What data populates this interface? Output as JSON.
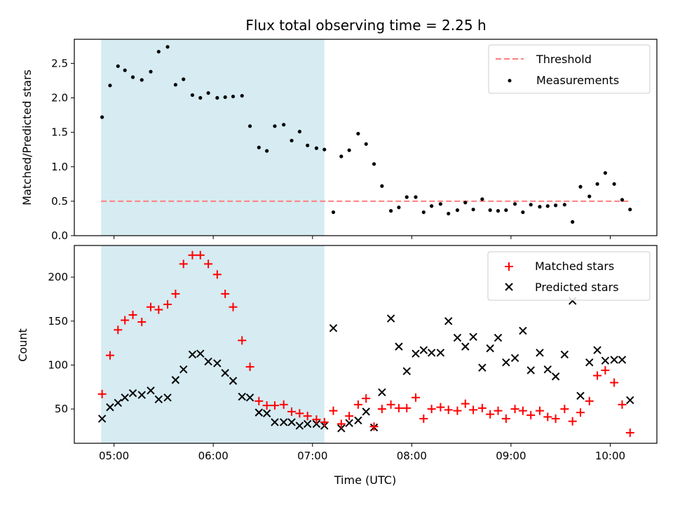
{
  "title": "Flux total observing time = 2.25 h",
  "colors": {
    "shade": "#add8e6",
    "threshold": "#ff7f7f",
    "matched": "#ff0000",
    "predicted": "#000000",
    "measurement": "#000000"
  },
  "chart_data": [
    {
      "type": "scatter",
      "ylabel": "Matched/Predicted stars",
      "ylim": [
        0,
        2.85
      ],
      "yticks": [
        "0.0",
        "0.5",
        "1.0",
        "1.5",
        "2.0",
        "2.5"
      ],
      "shaded_interval": [
        4.87,
        7.12
      ],
      "legend": {
        "placement": "top-right",
        "entries": [
          "Threshold",
          "Measurements"
        ]
      },
      "threshold": {
        "name": "Threshold",
        "y": 0.5,
        "x": [
          4.87,
          10.2
        ]
      },
      "series": [
        {
          "name": "Measurements",
          "x": [
            4.88,
            4.96,
            5.04,
            5.11,
            5.19,
            5.28,
            5.37,
            5.45,
            5.54,
            5.62,
            5.7,
            5.79,
            5.87,
            5.95,
            6.04,
            6.12,
            6.2,
            6.29,
            6.37,
            6.46,
            6.54,
            6.62,
            6.71,
            6.79,
            6.87,
            6.95,
            7.04,
            7.12,
            7.21,
            7.29,
            7.37,
            7.46,
            7.54,
            7.62,
            7.7,
            7.79,
            7.87,
            7.95,
            8.04,
            8.12,
            8.2,
            8.29,
            8.37,
            8.46,
            8.54,
            8.62,
            8.71,
            8.79,
            8.87,
            8.95,
            9.04,
            9.12,
            9.2,
            9.29,
            9.37,
            9.45,
            9.54,
            9.62,
            9.7,
            9.79,
            9.87,
            9.95,
            10.04,
            10.12,
            10.2
          ],
          "y": [
            1.72,
            2.18,
            2.46,
            2.4,
            2.3,
            2.26,
            2.38,
            2.67,
            2.74,
            2.19,
            2.27,
            2.04,
            2.0,
            2.07,
            2.0,
            2.01,
            2.02,
            2.03,
            1.59,
            1.28,
            1.23,
            1.59,
            1.61,
            1.38,
            1.51,
            1.31,
            1.27,
            1.25,
            0.34,
            1.15,
            1.24,
            1.48,
            1.33,
            1.04,
            0.72,
            0.36,
            0.41,
            0.56,
            0.56,
            0.34,
            0.43,
            0.46,
            0.32,
            0.37,
            0.48,
            0.38,
            0.53,
            0.37,
            0.36,
            0.37,
            0.46,
            0.34,
            0.45,
            0.42,
            0.43,
            0.44,
            0.45,
            0.2,
            0.71,
            0.57,
            0.75,
            0.91,
            0.75,
            0.52,
            0.38
          ]
        }
      ]
    },
    {
      "type": "scatter",
      "xlabel": "Time (UTC)",
      "ylabel": "Count",
      "ylim": [
        11,
        236
      ],
      "yticks": [
        "50",
        "100",
        "150",
        "200"
      ],
      "xticks": [
        "05:00",
        "06:00",
        "07:00",
        "08:00",
        "09:00",
        "10:00"
      ],
      "xlim": [
        4.6,
        10.47
      ],
      "shaded_interval": [
        4.87,
        7.12
      ],
      "legend": {
        "placement": "top-right",
        "entries": [
          "Matched stars",
          "Predicted stars"
        ]
      },
      "series": [
        {
          "name": "Matched stars",
          "marker": "+",
          "x": [
            4.88,
            4.96,
            5.04,
            5.11,
            5.19,
            5.28,
            5.37,
            5.45,
            5.54,
            5.62,
            5.7,
            5.79,
            5.87,
            5.95,
            6.04,
            6.12,
            6.2,
            6.29,
            6.37,
            6.46,
            6.54,
            6.62,
            6.71,
            6.79,
            6.87,
            6.95,
            7.04,
            7.12,
            7.21,
            7.29,
            7.37,
            7.46,
            7.54,
            7.62,
            7.7,
            7.79,
            7.87,
            7.95,
            8.04,
            8.12,
            8.2,
            8.29,
            8.37,
            8.46,
            8.54,
            8.62,
            8.71,
            8.79,
            8.87,
            8.95,
            9.04,
            9.12,
            9.2,
            9.29,
            9.37,
            9.45,
            9.54,
            9.62,
            9.7,
            9.79,
            9.87,
            9.95,
            10.04,
            10.12,
            10.2
          ],
          "y": [
            67,
            111,
            140,
            151,
            157,
            149,
            166,
            163,
            169,
            181,
            215,
            225,
            225,
            215,
            203,
            181,
            166,
            128,
            98,
            59,
            54,
            54,
            55,
            47,
            45,
            42,
            38,
            35,
            48,
            33,
            42,
            55,
            62,
            30,
            50,
            55,
            51,
            51,
            63,
            39,
            50,
            52,
            49,
            48,
            56,
            49,
            51,
            44,
            48,
            39,
            50,
            48,
            43,
            48,
            41,
            39,
            50,
            36,
            46,
            59,
            88,
            94,
            80,
            55,
            23
          ]
        },
        {
          "name": "Predicted stars",
          "marker": "x",
          "x": [
            4.88,
            4.96,
            5.04,
            5.11,
            5.19,
            5.28,
            5.37,
            5.45,
            5.54,
            5.62,
            5.7,
            5.79,
            5.87,
            5.95,
            6.04,
            6.12,
            6.2,
            6.29,
            6.37,
            6.46,
            6.54,
            6.62,
            6.71,
            6.79,
            6.87,
            6.95,
            7.04,
            7.12,
            7.21,
            7.29,
            7.37,
            7.46,
            7.54,
            7.62,
            7.7,
            7.79,
            7.87,
            7.95,
            8.04,
            8.12,
            8.2,
            8.29,
            8.37,
            8.46,
            8.54,
            8.62,
            8.71,
            8.79,
            8.87,
            8.95,
            9.04,
            9.12,
            9.2,
            9.29,
            9.37,
            9.45,
            9.54,
            9.62,
            9.7,
            9.79,
            9.87,
            9.95,
            10.04,
            10.12,
            10.2
          ],
          "y": [
            39,
            52,
            57,
            63,
            68,
            66,
            71,
            61,
            63,
            83,
            95,
            112,
            113,
            104,
            102,
            91,
            82,
            64,
            63,
            46,
            45,
            35,
            35,
            35,
            31,
            33,
            33,
            31,
            142,
            28,
            34,
            37,
            47,
            29,
            69,
            153,
            121,
            93,
            113,
            117,
            114,
            114,
            150,
            131,
            121,
            132,
            97,
            119,
            131,
            103,
            108,
            139,
            94,
            114,
            95,
            87,
            112,
            173,
            65,
            103,
            117,
            105,
            106,
            106,
            60
          ]
        }
      ]
    }
  ]
}
